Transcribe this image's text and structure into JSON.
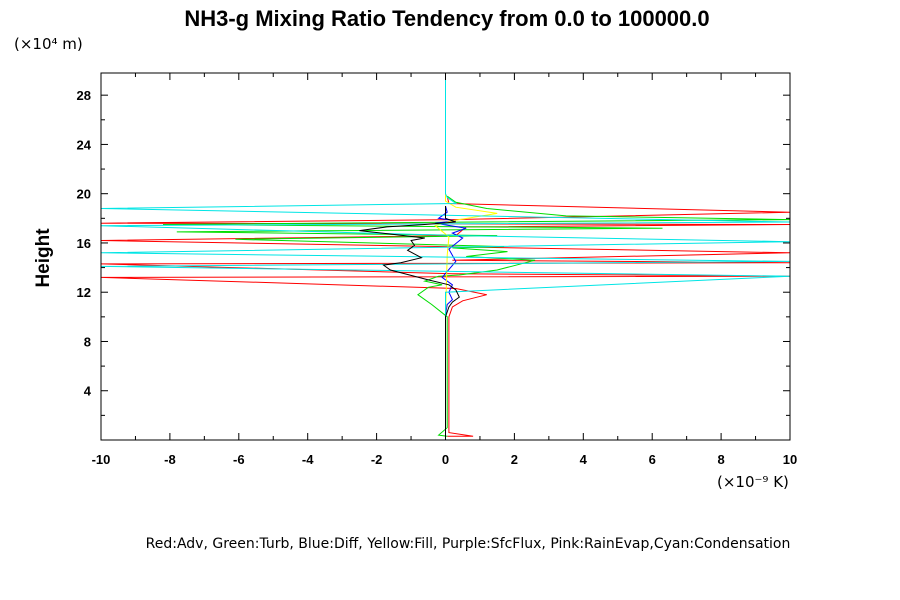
{
  "chart_data": {
    "type": "line",
    "title": "NH3-g Mixing Ratio Tendency from 0.0 to 100000.0",
    "ylabel": "Height",
    "y_multiplier": "(×10⁴ m)",
    "x_multiplier": "(×10⁻⁹ K)",
    "xlim": [
      -10,
      10
    ],
    "ylim": [
      0,
      29.8
    ],
    "xticks": [
      -10,
      -8,
      -6,
      -4,
      -2,
      0,
      2,
      4,
      6,
      8,
      10
    ],
    "yticks": [
      4,
      8,
      12,
      16,
      20,
      24,
      28
    ],
    "grid": false,
    "legend_text": "Red:Adv, Green:Turb, Blue:Diff, Yellow:Fill, Purple:SfcFlux, Pink:RainEvap,Cyan:Condensation",
    "series": [
      {
        "name": "Adv",
        "color": "#ff0000",
        "points": [
          [
            0.05,
            0.3
          ],
          [
            0.8,
            0.3
          ],
          [
            0.1,
            0.6
          ],
          [
            0.1,
            1
          ],
          [
            0.1,
            4
          ],
          [
            0.1,
            8
          ],
          [
            0.1,
            10
          ],
          [
            0.2,
            10.8
          ],
          [
            0.5,
            11.3
          ],
          [
            1.2,
            11.8
          ],
          [
            0.3,
            12.3
          ],
          [
            -10,
            13.2
          ],
          [
            10,
            13.3
          ],
          [
            0.2,
            13.5
          ],
          [
            -10,
            14.3
          ],
          [
            10,
            14.4
          ],
          [
            0.2,
            14.6
          ],
          [
            10,
            15.2
          ],
          [
            -10,
            16.2
          ],
          [
            0.3,
            16.6
          ],
          [
            0.6,
            17.3
          ],
          [
            10,
            17.5
          ],
          [
            -10,
            17.6
          ],
          [
            0.2,
            17.9
          ],
          [
            10,
            18.5
          ],
          [
            0.1,
            19.2
          ],
          [
            0.05,
            19.8
          ]
        ]
      },
      {
        "name": "Turb",
        "color": "#00dd00",
        "points": [
          [
            0.05,
            0.3
          ],
          [
            -0.2,
            0.4
          ],
          [
            0.05,
            1
          ],
          [
            0.05,
            8
          ],
          [
            0.05,
            10
          ],
          [
            -0.4,
            11
          ],
          [
            -0.8,
            11.8
          ],
          [
            -0.5,
            12.4
          ],
          [
            -0.1,
            12.6
          ],
          [
            -0.6,
            12.9
          ],
          [
            -0.2,
            13.3
          ],
          [
            0.4,
            13.4
          ],
          [
            1.5,
            13.8
          ],
          [
            2.6,
            14.6
          ],
          [
            0.6,
            14.9
          ],
          [
            1.8,
            15.3
          ],
          [
            0.2,
            15.6
          ],
          [
            1.7,
            15.7
          ],
          [
            -6.1,
            16.3
          ],
          [
            1.5,
            16.6
          ],
          [
            -7.8,
            16.9
          ],
          [
            6.3,
            17.2
          ],
          [
            -8.2,
            17.5
          ],
          [
            10,
            17.9
          ],
          [
            3.5,
            18.2
          ],
          [
            1.2,
            18.8
          ],
          [
            0.3,
            19.3
          ],
          [
            0.05,
            19.8
          ]
        ]
      },
      {
        "name": "Diff",
        "color": "#0000ff",
        "points": [
          [
            0,
            0.3
          ],
          [
            0,
            4
          ],
          [
            0,
            8
          ],
          [
            0,
            10
          ],
          [
            0.02,
            10.5
          ],
          [
            0.05,
            11
          ],
          [
            0.2,
            11.4
          ],
          [
            0.1,
            12
          ],
          [
            0.2,
            12.6
          ],
          [
            -0.1,
            13.2
          ],
          [
            0.3,
            14.5
          ],
          [
            0.1,
            15.5
          ],
          [
            0.5,
            16.4
          ],
          [
            0.2,
            16.8
          ],
          [
            0.6,
            17.2
          ],
          [
            -0.3,
            17.6
          ],
          [
            0.3,
            17.8
          ],
          [
            -0.2,
            18
          ],
          [
            0.05,
            18.5
          ],
          [
            0,
            19
          ]
        ]
      },
      {
        "name": "Fill",
        "color": "#ffff00",
        "points": [
          [
            0,
            0.3
          ],
          [
            0,
            10
          ],
          [
            0.05,
            15
          ],
          [
            0.1,
            16.5
          ],
          [
            -0.3,
            17.4
          ],
          [
            0.2,
            17.8
          ],
          [
            1.5,
            18.4
          ],
          [
            0.3,
            18.9
          ],
          [
            0,
            19.4
          ],
          [
            0,
            20
          ]
        ]
      },
      {
        "name": "Condensation",
        "color": "#00e5e5",
        "points": [
          [
            0,
            0.1
          ],
          [
            0,
            8
          ],
          [
            0,
            11
          ],
          [
            0,
            12
          ],
          [
            10,
            13.3
          ],
          [
            -10,
            14.1
          ],
          [
            10,
            14.5
          ],
          [
            -10,
            15.2
          ],
          [
            10,
            16.1
          ],
          [
            0.4,
            16.6
          ],
          [
            -10,
            17.4
          ],
          [
            10,
            17.7
          ],
          [
            -10,
            18.8
          ],
          [
            0.3,
            19.2
          ],
          [
            0.05,
            19.7
          ],
          [
            0,
            20
          ],
          [
            0,
            29.8
          ]
        ]
      },
      {
        "name": "Black",
        "color": "#000000",
        "points": [
          [
            0,
            0.3
          ],
          [
            0,
            8
          ],
          [
            0,
            10
          ],
          [
            0.1,
            10.8
          ],
          [
            0.2,
            11.2
          ],
          [
            0.4,
            11.6
          ],
          [
            0.3,
            12.2
          ],
          [
            0.1,
            12.6
          ],
          [
            -0.5,
            13
          ],
          [
            -1.6,
            13.8
          ],
          [
            -1.8,
            14.2
          ],
          [
            -1.3,
            14.4
          ],
          [
            -0.7,
            14.8
          ],
          [
            -1.1,
            15.4
          ],
          [
            -0.9,
            15.8
          ],
          [
            -1,
            16.2
          ],
          [
            -0.6,
            16.4
          ],
          [
            -1.2,
            16.6
          ],
          [
            -2.5,
            17
          ],
          [
            -1.7,
            17.3
          ],
          [
            -0.6,
            17.5
          ],
          [
            0.3,
            17.7
          ],
          [
            0,
            18
          ],
          [
            0,
            19
          ]
        ]
      }
    ]
  }
}
